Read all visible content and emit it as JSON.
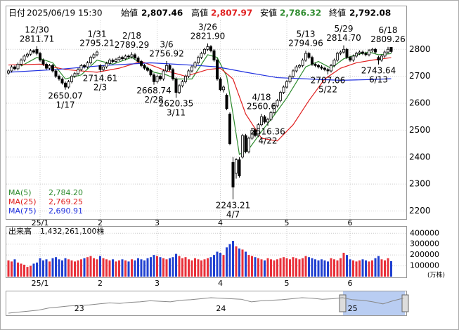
{
  "header": {
    "date_label": "日付",
    "datetime": "2025/06/19 15:30",
    "open_label": "始値",
    "open": "2,807.46",
    "high_label": "高値",
    "high": "2,807.97",
    "low_label": "安値",
    "low": "2,786.32",
    "close_label": "終値",
    "close": "2,792.08"
  },
  "chart_data": {
    "type": "candlestick",
    "up_color": "#ffffff",
    "down_color": "#000000",
    "volume_up_color": "#e8303a",
    "volume_down_color": "#2040d0",
    "ylim": [
      2170,
      2905
    ],
    "yticks": [
      2200,
      2300,
      2400,
      2500,
      2600,
      2700,
      2800
    ],
    "grid": true,
    "categories": [
      null,
      null,
      null,
      null,
      null,
      null,
      null,
      null,
      null,
      null,
      "25/1",
      null,
      null,
      null,
      null,
      null,
      null,
      null,
      null,
      null,
      null,
      null,
      null,
      null,
      null,
      null,
      null,
      null,
      null,
      "2",
      null,
      null,
      null,
      null,
      null,
      null,
      null,
      null,
      null,
      null,
      null,
      null,
      null,
      null,
      null,
      null,
      null,
      "3",
      null,
      null,
      null,
      null,
      null,
      null,
      null,
      null,
      null,
      null,
      null,
      null,
      null,
      null,
      null,
      null,
      null,
      null,
      null,
      "4",
      null,
      null,
      null,
      null,
      null,
      null,
      null,
      null,
      null,
      null,
      null,
      null,
      null,
      null,
      null,
      null,
      null,
      null,
      null,
      null,
      "5",
      null,
      null,
      null,
      null,
      null,
      null,
      null,
      null,
      null,
      null,
      null,
      null,
      null,
      null,
      null,
      null,
      null,
      null,
      null,
      "6",
      null,
      null,
      null,
      null,
      null,
      null,
      null,
      null,
      null,
      null,
      null,
      null,
      null
    ],
    "candles": [
      [
        2712,
        2726,
        2706,
        2720
      ],
      [
        2720,
        2741,
        2714,
        2735
      ],
      [
        2735,
        2740,
        2722,
        2728
      ],
      [
        2728,
        2751,
        2722,
        2745
      ],
      [
        2745,
        2766,
        2739,
        2760
      ],
      [
        2760,
        2781,
        2754,
        2775
      ],
      [
        2775,
        2788,
        2769,
        2782
      ],
      [
        2782,
        2801,
        2776,
        2795
      ],
      [
        2795,
        2800,
        2784,
        2790
      ],
      [
        2800,
        2811.71,
        2778,
        2785
      ],
      [
        2785,
        2791,
        2754,
        2760
      ],
      [
        2760,
        2766,
        2739,
        2745
      ],
      [
        2745,
        2751,
        2724,
        2730
      ],
      [
        2730,
        2746,
        2724,
        2740
      ],
      [
        2740,
        2746,
        2714,
        2720
      ],
      [
        2720,
        2726,
        2694,
        2700
      ],
      [
        2700,
        2706,
        2684,
        2690
      ],
      [
        2690,
        2696,
        2669,
        2675
      ],
      [
        2675,
        2681,
        2650.07,
        2660
      ],
      [
        2660,
        2686,
        2654,
        2680
      ],
      [
        2680,
        2706,
        2674,
        2700
      ],
      [
        2700,
        2716,
        2694,
        2710
      ],
      [
        2710,
        2731,
        2704,
        2725
      ],
      [
        2725,
        2746,
        2719,
        2740
      ],
      [
        2740,
        2746,
        2729,
        2735
      ],
      [
        2735,
        2756,
        2729,
        2750
      ],
      [
        2750,
        2776,
        2744,
        2770
      ],
      [
        2770,
        2786,
        2764,
        2780
      ],
      [
        2780,
        2795.21,
        2774,
        2790
      ],
      [
        2740,
        2745,
        2714.61,
        2725
      ],
      [
        2725,
        2741,
        2719,
        2735
      ],
      [
        2735,
        2754,
        2729,
        2748
      ],
      [
        2748,
        2766,
        2742,
        2760
      ],
      [
        2760,
        2766,
        2749,
        2755
      ],
      [
        2755,
        2768,
        2749,
        2762
      ],
      [
        2762,
        2776,
        2756,
        2770
      ],
      [
        2770,
        2776,
        2759,
        2765
      ],
      [
        2765,
        2781,
        2759,
        2775
      ],
      [
        2775,
        2781,
        2766,
        2772
      ],
      [
        2772,
        2789.29,
        2766,
        2780
      ],
      [
        2780,
        2786,
        2762,
        2768
      ],
      [
        2768,
        2774,
        2749,
        2755
      ],
      [
        2755,
        2761,
        2734,
        2740
      ],
      [
        2740,
        2746,
        2724,
        2730
      ],
      [
        2730,
        2736,
        2716,
        2722
      ],
      [
        2722,
        2728,
        2699,
        2705
      ],
      [
        2705,
        2711,
        2668.74,
        2680
      ],
      [
        2680,
        2706,
        2674,
        2700
      ],
      [
        2700,
        2706,
        2684,
        2690
      ],
      [
        2690,
        2726,
        2684,
        2720
      ],
      [
        2720,
        2756.92,
        2714,
        2740
      ],
      [
        2740,
        2746,
        2719,
        2725
      ],
      [
        2725,
        2731,
        2684,
        2690
      ],
      [
        2690,
        2696,
        2620.35,
        2640
      ],
      [
        2640,
        2671,
        2634,
        2665
      ],
      [
        2665,
        2686,
        2659,
        2680
      ],
      [
        2680,
        2706,
        2674,
        2700
      ],
      [
        2700,
        2726,
        2694,
        2720
      ],
      [
        2720,
        2741,
        2714,
        2735
      ],
      [
        2735,
        2756,
        2729,
        2750
      ],
      [
        2750,
        2776,
        2744,
        2770
      ],
      [
        2770,
        2791,
        2764,
        2785
      ],
      [
        2785,
        2806,
        2779,
        2800
      ],
      [
        2800,
        2821.9,
        2794,
        2810
      ],
      [
        2810,
        2816,
        2789,
        2795
      ],
      [
        2795,
        2801,
        2754,
        2760
      ],
      [
        2760,
        2766,
        2684,
        2690
      ],
      [
        2690,
        2696,
        2644,
        2650
      ],
      [
        2650,
        2666,
        2640,
        2660
      ],
      [
        2630,
        2636,
        2574,
        2580
      ],
      [
        2560,
        2566,
        2444,
        2450
      ],
      [
        2380,
        2400,
        2243.21,
        2289
      ],
      [
        2340,
        2396,
        2320,
        2390
      ],
      [
        2390,
        2400,
        2324,
        2330
      ],
      [
        2400,
        2486,
        2395,
        2480
      ],
      [
        2480,
        2486,
        2414,
        2420
      ],
      [
        2420,
        2476,
        2414,
        2470
      ],
      [
        2470,
        2506,
        2464,
        2500
      ],
      [
        2500,
        2506,
        2474,
        2480
      ],
      [
        2480,
        2526,
        2474,
        2520
      ],
      [
        2520,
        2560.6,
        2514,
        2550
      ],
      [
        2550,
        2556,
        2524,
        2530
      ],
      [
        2530,
        2546,
        2516.36,
        2540
      ],
      [
        2540,
        2571,
        2534,
        2565
      ],
      [
        2565,
        2596,
        2559,
        2590
      ],
      [
        2590,
        2616,
        2584,
        2610
      ],
      [
        2610,
        2646,
        2604,
        2640
      ],
      [
        2640,
        2666,
        2634,
        2660
      ],
      [
        2660,
        2686,
        2654,
        2680
      ],
      [
        2680,
        2706,
        2674,
        2700
      ],
      [
        2700,
        2726,
        2694,
        2720
      ],
      [
        2720,
        2741,
        2714,
        2735
      ],
      [
        2735,
        2746,
        2729,
        2740
      ],
      [
        2740,
        2766,
        2734,
        2760
      ],
      [
        2760,
        2794.96,
        2754,
        2785
      ],
      [
        2785,
        2791,
        2764,
        2770
      ],
      [
        2770,
        2776,
        2739,
        2745
      ],
      [
        2745,
        2751,
        2734,
        2740
      ],
      [
        2740,
        2746,
        2729,
        2735
      ],
      [
        2735,
        2741,
        2724,
        2730
      ],
      [
        2730,
        2736,
        2719,
        2725
      ],
      [
        2725,
        2731,
        2707.06,
        2720
      ],
      [
        2720,
        2746,
        2714,
        2740
      ],
      [
        2740,
        2766,
        2734,
        2760
      ],
      [
        2760,
        2791,
        2754,
        2785
      ],
      [
        2785,
        2796,
        2779,
        2790
      ],
      [
        2790,
        2814.7,
        2784,
        2800
      ],
      [
        2800,
        2806,
        2764,
        2770
      ],
      [
        2770,
        2776,
        2754,
        2760
      ],
      [
        2760,
        2781,
        2754,
        2775
      ],
      [
        2775,
        2791,
        2769,
        2785
      ],
      [
        2785,
        2796,
        2779,
        2790
      ],
      [
        2790,
        2796,
        2779,
        2785
      ],
      [
        2785,
        2791,
        2774,
        2780
      ],
      [
        2780,
        2801,
        2774,
        2795
      ],
      [
        2795,
        2806,
        2789,
        2800
      ],
      [
        2800,
        2806,
        2784,
        2790
      ],
      [
        2770,
        2776,
        2743.64,
        2760
      ],
      [
        2760,
        2781,
        2754,
        2775
      ],
      [
        2775,
        2796,
        2769,
        2790
      ],
      [
        2790,
        2809.26,
        2784,
        2800
      ],
      [
        2807.46,
        2807.97,
        2786.32,
        2792.08
      ]
    ],
    "moving_averages": [
      {
        "name": "MA(5)",
        "value_label": "2,784.20",
        "color": "#2e8b2e",
        "x": [
          4,
          9,
          14,
          18,
          23,
          28,
          33,
          39,
          46,
          50,
          53,
          58,
          63,
          66,
          69,
          71,
          73,
          76,
          80,
          84,
          88,
          94,
          98,
          102,
          106,
          110,
          114,
          117,
          121
        ],
        "values": [
          2738,
          2770,
          2750,
          2690,
          2705,
          2760,
          2745,
          2770,
          2715,
          2705,
          2690,
          2690,
          2780,
          2770,
          2700,
          2560,
          2410,
          2430,
          2495,
          2555,
          2620,
          2735,
          2755,
          2730,
          2765,
          2780,
          2790,
          2780,
          2784.2
        ]
      },
      {
        "name": "MA(25)",
        "value_label": "2,769.25",
        "color": "#e02020",
        "x": [
          0,
          10,
          18,
          28,
          35,
          42,
          50,
          56,
          63,
          67,
          71,
          75,
          80,
          85,
          90,
          95,
          100,
          105,
          110,
          115,
          121
        ],
        "values": [
          2742,
          2745,
          2725,
          2715,
          2730,
          2755,
          2720,
          2700,
          2725,
          2730,
          2690,
          2560,
          2470,
          2460,
          2520,
          2610,
          2690,
          2730,
          2750,
          2760,
          2769.25
        ]
      },
      {
        "name": "MA(75)",
        "value_label": "2,690.91",
        "color": "#2030e0",
        "x": [
          0,
          15,
          30,
          45,
          60,
          66,
          75,
          85,
          95,
          105,
          115,
          121
        ],
        "values": [
          2715,
          2725,
          2740,
          2750,
          2740,
          2735,
          2715,
          2695,
          2690,
          2685,
          2688,
          2690.91
        ]
      }
    ],
    "annotations": [
      {
        "date": "12/30",
        "value": 2811.71,
        "label": "2811.71"
      },
      {
        "date": "1/17",
        "value": 2650.07,
        "label": "2650.07"
      },
      {
        "date": "1/31",
        "value": 2795.21,
        "label": "2795.21"
      },
      {
        "date": "2/3",
        "value": 2714.61,
        "label": "2714.61"
      },
      {
        "date": "2/18",
        "value": 2789.29,
        "label": "2789.29"
      },
      {
        "date": "2/28",
        "value": 2668.74,
        "label": "2668.74"
      },
      {
        "date": "3/6",
        "value": 2756.92,
        "label": "2756.92"
      },
      {
        "date": "3/11",
        "value": 2620.35,
        "label": "2620.35"
      },
      {
        "date": "3/26",
        "value": 2821.9,
        "label": "2821.90"
      },
      {
        "date": "4/7",
        "value": 2243.21,
        "label": "2243.21"
      },
      {
        "date": "4/18",
        "value": 2560.6,
        "label": "2560.6"
      },
      {
        "date": "4/22",
        "value": 2516.36,
        "label": "2516.36"
      },
      {
        "date": "5/13",
        "value": 2794.96,
        "label": "2794.96"
      },
      {
        "date": "5/22",
        "value": 2707.06,
        "label": "2707.06"
      },
      {
        "date": "5/29",
        "value": 2814.7,
        "label": "2814.70"
      },
      {
        "date": "6/13",
        "value": 2743.64,
        "label": "2743.64"
      },
      {
        "date": "6/18",
        "value": 2809.26,
        "label": "2809.26"
      }
    ],
    "volume": {
      "title": "出来高",
      "total": "1,432,261,100株",
      "unit": "(万株)",
      "ylim": [
        0,
        460000
      ],
      "yticks": [
        100000,
        200000,
        300000,
        400000
      ],
      "values": [
        150000,
        140000,
        160000,
        130000,
        120000,
        110000,
        90000,
        100000,
        120000,
        130000,
        170000,
        150000,
        160000,
        140000,
        170000,
        180000,
        160000,
        150000,
        170000,
        160000,
        150000,
        140000,
        150000,
        160000,
        170000,
        180000,
        190000,
        170000,
        160000,
        190000,
        170000,
        160000,
        150000,
        160000,
        140000,
        150000,
        160000,
        150000,
        140000,
        160000,
        150000,
        170000,
        160000,
        150000,
        170000,
        180000,
        200000,
        190000,
        180000,
        170000,
        160000,
        170000,
        180000,
        210000,
        190000,
        170000,
        180000,
        160000,
        150000,
        170000,
        160000,
        150000,
        160000,
        170000,
        180000,
        200000,
        230000,
        220000,
        200000,
        270000,
        300000,
        330000,
        280000,
        260000,
        250000,
        230000,
        200000,
        190000,
        180000,
        170000,
        160000,
        150000,
        170000,
        160000,
        150000,
        160000,
        170000,
        180000,
        170000,
        160000,
        180000,
        170000,
        160000,
        170000,
        190000,
        180000,
        170000,
        160000,
        150000,
        160000,
        150000,
        140000,
        170000,
        160000,
        150000,
        170000,
        220000,
        200000,
        160000,
        150000,
        140000,
        150000,
        160000,
        150000,
        140000,
        150000,
        170000,
        190000,
        160000,
        150000,
        170000,
        143226
      ]
    },
    "navigator": {
      "categories": [
        null,
        null,
        null,
        null,
        null,
        null,
        null,
        "23",
        null,
        null,
        null,
        null,
        null,
        null,
        null,
        null,
        null,
        null,
        null,
        null,
        null,
        "24",
        null,
        null,
        null,
        null,
        null,
        null,
        null,
        null,
        null,
        null,
        null,
        null,
        "25",
        null,
        null,
        null,
        null,
        null
      ],
      "values": [
        2500,
        2520,
        2540,
        2560,
        2600,
        2620,
        2640,
        2650,
        2660,
        2680,
        2700,
        2690,
        2710,
        2720,
        2740,
        2730,
        2720,
        2750,
        2760,
        2780,
        2800,
        2790,
        2780,
        2770,
        2720,
        2740,
        2750,
        2760,
        2780,
        2800,
        2790,
        2770,
        2780,
        2800,
        2760,
        2750,
        2720,
        2680,
        2740,
        2790
      ]
    }
  }
}
